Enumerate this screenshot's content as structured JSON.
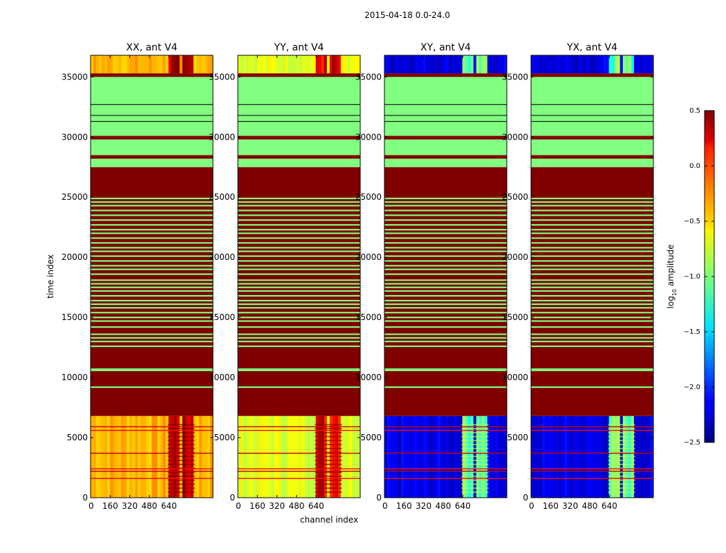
{
  "chart_data": {
    "type": "heatmap",
    "suptitle": "2015-04-18 0.0-24.0",
    "xlabel": "channel index",
    "ylabel": "time index",
    "xlim": [
      0,
      1000
    ],
    "ylim": [
      0,
      36800
    ],
    "x_ticks": [
      0,
      160,
      320,
      480,
      640
    ],
    "x_tick_labels": [
      "0",
      "160",
      "320",
      "480",
      "640"
    ],
    "y_ticks": [
      0,
      5000,
      10000,
      15000,
      20000,
      25000,
      30000,
      35000
    ],
    "y_tick_labels": [
      "0",
      "5000",
      "10000",
      "15000",
      "20000",
      "25000",
      "30000",
      "35000"
    ],
    "panels": [
      {
        "title": "XX, ant V4",
        "base_level": -0.4,
        "active_level": 0.3
      },
      {
        "title": "YY, ant V4",
        "base_level": -0.7,
        "active_level": 0.2
      },
      {
        "title": "XY, ant V4",
        "base_level": -2.2,
        "active_level": -1.1
      },
      {
        "title": "YX, ant V4",
        "base_level": -2.2,
        "active_level": -1.1
      }
    ],
    "active_channel_bands": [
      [
        630,
        680
      ],
      [
        690,
        730
      ],
      [
        745,
        790
      ],
      [
        805,
        850
      ]
    ],
    "blocks": [
      {
        "t_start": 0,
        "t_end": 6800,
        "kind": "data"
      },
      {
        "t_start": 6800,
        "t_end": 27500,
        "kind": "saturated",
        "level": 0.5
      },
      {
        "t_start": 27500,
        "t_end": 28200,
        "kind": "fill",
        "level": -1.0
      },
      {
        "t_start": 28200,
        "t_end": 28500,
        "kind": "saturated",
        "level": 0.5
      },
      {
        "t_start": 28500,
        "t_end": 29800,
        "kind": "fill",
        "level": -1.0
      },
      {
        "t_start": 29800,
        "t_end": 30100,
        "kind": "saturated",
        "level": 0.5
      },
      {
        "t_start": 30100,
        "t_end": 35000,
        "kind": "fill",
        "level": -1.0
      },
      {
        "t_start": 35000,
        "t_end": 35300,
        "kind": "saturated",
        "level": 0.5
      },
      {
        "t_start": 35300,
        "t_end": 36800,
        "kind": "data"
      }
    ],
    "stripes_in_saturated_block": [
      9200,
      10600,
      10700,
      12600,
      13000,
      13300,
      13600,
      14200,
      14700,
      15000,
      15400,
      15800,
      16100,
      16400,
      16800,
      17200,
      17500,
      17800,
      18100,
      18600,
      19000,
      19300,
      19700,
      20100,
      20500,
      20800,
      21200,
      21600,
      22000,
      22300,
      22700,
      23100,
      23500,
      23900,
      24300,
      24600,
      24900
    ],
    "lines_in_fill_block": [
      31300,
      31800,
      32700
    ],
    "lines_in_data_block": [
      1600,
      2200,
      2400,
      3700,
      5600,
      5900
    ],
    "colorbar": {
      "label": "log",
      "label_sub": "10",
      "label_rest": " amplitude",
      "range": [
        -2.5,
        0.5
      ],
      "tick_values": [
        0.5,
        0.0,
        -0.5,
        -1.0,
        -1.5,
        -2.0,
        -2.5
      ],
      "tick_labels": [
        "0.5",
        "0.0",
        "−0.5",
        "−1.0",
        "−1.5",
        "−2.0",
        "−2.5"
      ],
      "colormap": "jet"
    }
  }
}
